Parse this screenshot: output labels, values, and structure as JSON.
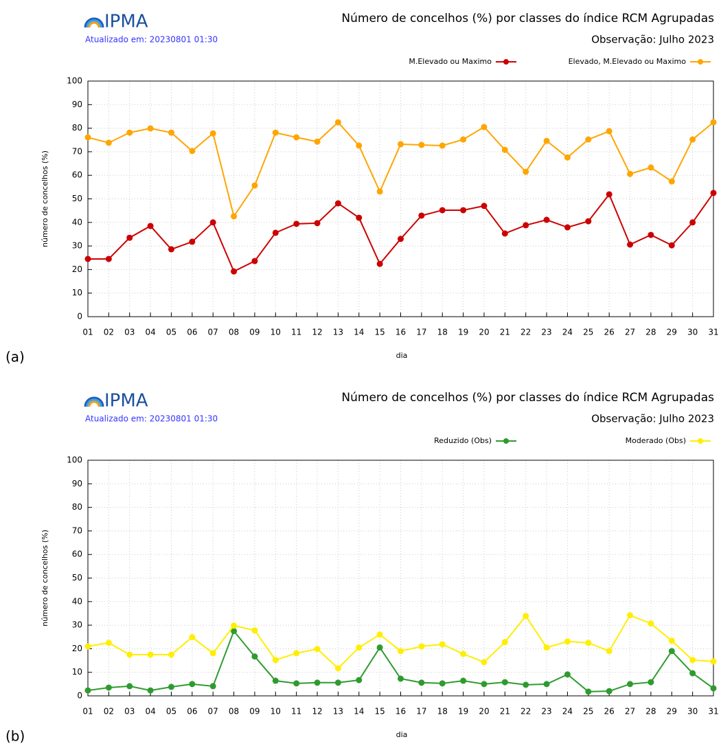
{
  "chart_data": [
    {
      "type": "line",
      "logo_text": "IPMA",
      "updated": "Atualizado em: 20230801 01:30",
      "title": "Número de concelhos (%) por classes do índice RCM Agrupadas",
      "subtitle": "Observação: Julho 2023",
      "y_label": "número de concelhos (%)",
      "x_label": "dia",
      "panel_label": "(a)",
      "categories": [
        "01",
        "02",
        "03",
        "04",
        "05",
        "06",
        "07",
        "08",
        "09",
        "10",
        "11",
        "12",
        "13",
        "14",
        "15",
        "16",
        "17",
        "18",
        "19",
        "20",
        "21",
        "22",
        "23",
        "24",
        "25",
        "26",
        "27",
        "28",
        "29",
        "30",
        "31"
      ],
      "series": [
        {
          "name": "M.Elevado ou Maximo",
          "color": "#cc0000",
          "values": [
            24.5,
            24.5,
            33.5,
            38.5,
            28.6,
            31.8,
            40,
            19.2,
            23.6,
            35.6,
            39.4,
            39.7,
            48.1,
            42,
            22.4,
            33,
            42.9,
            45.2,
            45.2,
            47,
            35.3,
            38.8,
            41.1,
            37.9,
            40.5,
            51.9,
            30.6,
            34.7,
            30.3,
            40,
            52.5
          ]
        },
        {
          "name": "Elevado, M.Elevado ou Maximo",
          "color": "#ffa500",
          "values": [
            76.1,
            73.8,
            78.1,
            79.9,
            78.1,
            70.3,
            77.8,
            42.6,
            55.7,
            78.1,
            76.1,
            74.3,
            82.5,
            72.6,
            53.1,
            73.2,
            72.9,
            72.6,
            75.2,
            80.5,
            70.8,
            61.5,
            74.6,
            67.6,
            75.2,
            78.7,
            60.6,
            63.3,
            57.4,
            75.2,
            82.5
          ]
        }
      ],
      "ylim": [
        0,
        100
      ],
      "yticks": [
        0,
        10,
        20,
        30,
        40,
        50,
        60,
        70,
        80,
        90,
        100
      ],
      "grid": true
    },
    {
      "type": "line",
      "logo_text": "IPMA",
      "updated": "Atualizado em: 20230801 01:30",
      "title": "Número de concelhos (%) por classes do índice RCM Agrupadas",
      "subtitle": "Observação: Julho 2023",
      "y_label": "número de concelhos (%)",
      "x_label": "dia",
      "panel_label": "(b)",
      "categories": [
        "01",
        "02",
        "03",
        "04",
        "05",
        "06",
        "07",
        "08",
        "09",
        "10",
        "11",
        "12",
        "13",
        "14",
        "15",
        "16",
        "17",
        "18",
        "19",
        "20",
        "21",
        "22",
        "23",
        "24",
        "25",
        "26",
        "27",
        "28",
        "29",
        "30",
        "31"
      ],
      "series": [
        {
          "name": "Reduzido (Obs)",
          "color": "#2e9b2e",
          "values": [
            2.3,
            3.5,
            4.1,
            2.3,
            3.8,
            5,
            4.1,
            27.5,
            16.7,
            6.4,
            5.3,
            5.6,
            5.6,
            6.7,
            20.5,
            7.3,
            5.6,
            5.3,
            6.4,
            5,
            5.8,
            4.7,
            5,
            9.1,
            1.8,
            2,
            5,
            5.8,
            19,
            9.6,
            3.2
          ]
        },
        {
          "name": "Moderado (Obs)",
          "color": "#ffee00",
          "values": [
            21,
            22.5,
            17.5,
            17.5,
            17.5,
            24.9,
            18.1,
            29.8,
            27.8,
            15.2,
            18.1,
            19.9,
            11.7,
            20.5,
            26,
            19,
            21,
            21.9,
            17.8,
            14.3,
            22.8,
            33.9,
            20.5,
            23.1,
            22.5,
            19,
            34.2,
            30.7,
            23.4,
            15.2,
            14.6
          ]
        }
      ],
      "ylim": [
        0,
        100
      ],
      "yticks": [
        0,
        10,
        20,
        30,
        40,
        50,
        60,
        70,
        80,
        90,
        100
      ],
      "grid": true
    }
  ]
}
